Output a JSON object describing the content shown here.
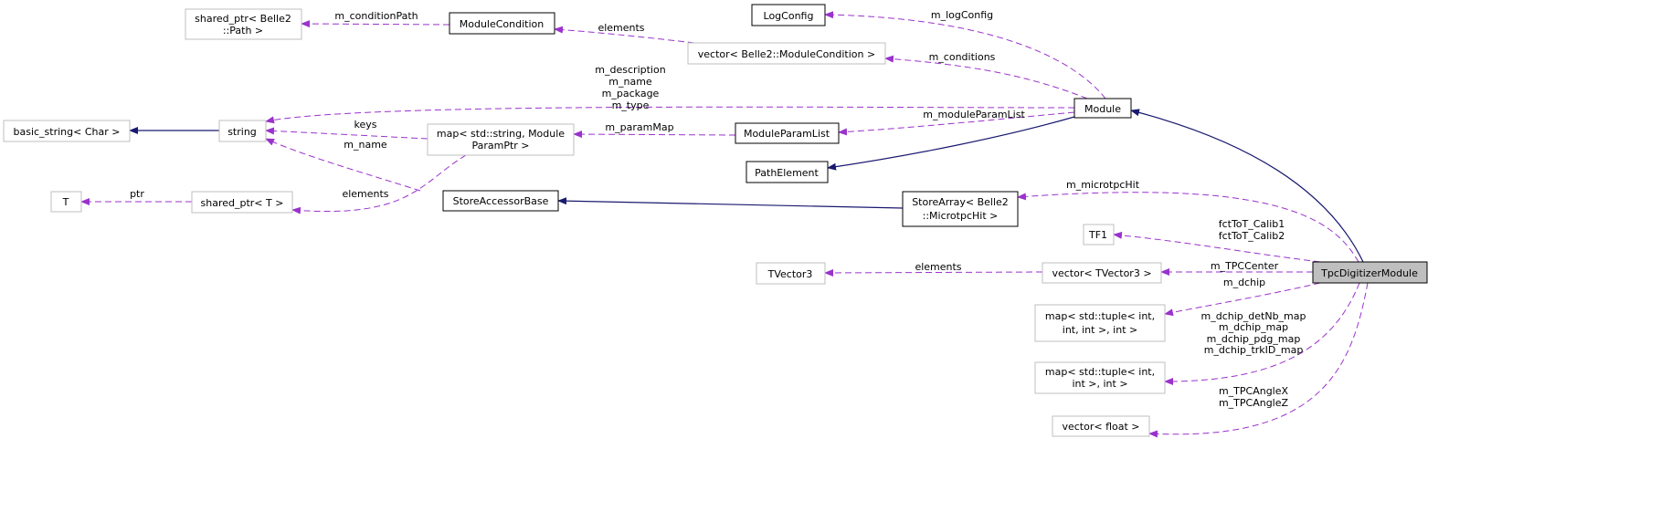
{
  "colors": {
    "usage_edge": "#9a32cd",
    "inheritance_edge": "#191970",
    "focus_fill": "#bfbfbf"
  },
  "nodes": {
    "shared_ptr_path": [
      "shared_ptr< Belle2",
      "::Path >"
    ],
    "module_condition": "ModuleCondition",
    "log_config": "LogConfig",
    "vector_module_condition": "vector< Belle2::ModuleCondition >",
    "module": "Module",
    "basic_string": "basic_string< Char >",
    "string": "string",
    "map_param": [
      "map< std::string, Module",
      "ParamPtr >"
    ],
    "module_param_list": "ModuleParamList",
    "path_element": "PathElement",
    "t": "T",
    "shared_ptr_t": "shared_ptr< T >",
    "store_accessor_base": "StoreAccessorBase",
    "store_array": [
      "StoreArray< Belle2",
      "::MicrotpcHit >"
    ],
    "tf1": "TF1",
    "tvector3": "TVector3",
    "vector_tvector3": "vector< TVector3 >",
    "tpc_digitizer": "TpcDigitizerModule",
    "map_tuple3": [
      "map< std::tuple< int,",
      "int, int >, int >"
    ],
    "map_tuple2": [
      "map< std::tuple< int,",
      "int >, int >"
    ],
    "vector_float": "vector< float >"
  },
  "edge_labels": {
    "condition_path": "m_conditionPath",
    "elements_condition": "elements",
    "log_config": "m_logConfig",
    "conditions": "m_conditions",
    "module_strings": [
      "m_description",
      "m_name",
      "m_package",
      "m_type"
    ],
    "module_param_list": "m_moduleParamList",
    "param_map": "m_paramMap",
    "keys": "keys",
    "m_name": "m_name",
    "elements_shared": "elements",
    "ptr": "ptr",
    "microtpc_hit": "m_microtpcHit",
    "calib": [
      "fctToT_Calib1",
      "fctToT_Calib2"
    ],
    "tpc_center": "m_TPCCenter",
    "elements_tvector": "elements",
    "dchip": "m_dchip",
    "dchip_maps": [
      "m_dchip_detNb_map",
      "m_dchip_map",
      "m_dchip_pdg_map",
      "m_dchip_trkID_map"
    ],
    "angles": [
      "m_TPCAngleX",
      "m_TPCAngleZ"
    ]
  }
}
